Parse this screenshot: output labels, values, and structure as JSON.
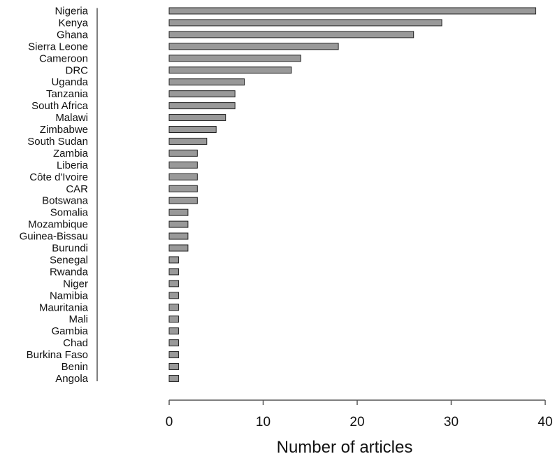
{
  "chart_data": {
    "type": "bar",
    "orientation": "horizontal",
    "categories": [
      "Nigeria",
      "Kenya",
      "Ghana",
      "Sierra Leone",
      "Cameroon",
      "DRC",
      "Uganda",
      "Tanzania",
      "South Africa",
      "Malawi",
      "Zimbabwe",
      "South Sudan",
      "Zambia",
      "Liberia",
      "Côte d'Ivoire",
      "CAR",
      "Botswana",
      "Somalia",
      "Mozambique",
      "Guinea-Bissau",
      "Burundi",
      "Senegal",
      "Rwanda",
      "Niger",
      "Namibia",
      "Mauritania",
      "Mali",
      "Gambia",
      "Chad",
      "Burkina Faso",
      "Benin",
      "Angola"
    ],
    "values": [
      39,
      29,
      26,
      18,
      14,
      13,
      8,
      7,
      7,
      6,
      5,
      4,
      3,
      3,
      3,
      3,
      3,
      2,
      2,
      2,
      2,
      1,
      1,
      1,
      1,
      1,
      1,
      1,
      1,
      1,
      1,
      1
    ],
    "xlabel": "Number of articles",
    "ylabel": "",
    "xlim": [
      0,
      40
    ],
    "xticks": [
      0,
      10,
      20,
      30,
      40
    ],
    "grid": false,
    "bar_color": "#999999"
  }
}
